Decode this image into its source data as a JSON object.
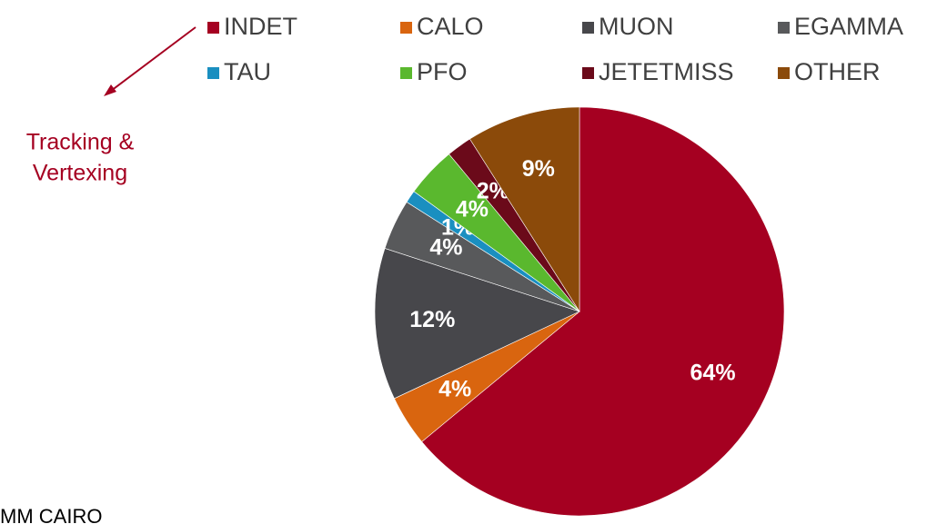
{
  "chart_data": {
    "type": "pie",
    "categories": [
      "INDET",
      "CALO",
      "MUON",
      "EGAMMA",
      "TAU",
      "PFO",
      "JETETMISS",
      "OTHER"
    ],
    "values": [
      64,
      4,
      12,
      4,
      1,
      4,
      2,
      9
    ],
    "value_labels": [
      "64%",
      "4%",
      "12%",
      "4%",
      "1%",
      "4%",
      "2%",
      "9%"
    ],
    "colors": [
      "#a50021",
      "#d9650f",
      "#47474b",
      "#58595b",
      "#1a8fc0",
      "#5ab82e",
      "#6b0a1a",
      "#8b4a0a"
    ],
    "annotation": [
      "Tracking &",
      "Vertexing"
    ],
    "footer": "MM CAIRO"
  }
}
